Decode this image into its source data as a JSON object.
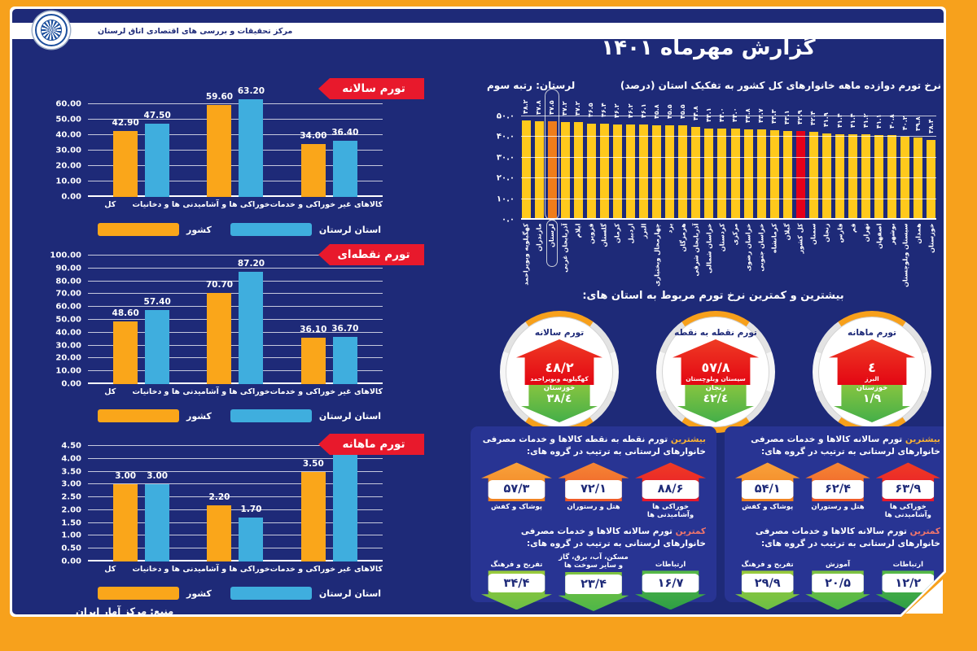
{
  "colors": {
    "orange_frame": "#F7A11C",
    "navy": "#1E2A78",
    "panel_navy": "#283493",
    "bar_orange": "#FAA61A",
    "bar_blue": "#3FAEDE",
    "bar_yellow": "#FFC91C",
    "bar_highlight": "#F07D1A",
    "bar_red": "#E50019",
    "ribbon_red": "#E8192C"
  },
  "banner": {
    "org_name": "مرکز تحقیقات و بررسی های اقتصادی اتاق لرستان"
  },
  "report_title": "گزارش مهرماه ۱۴۰۱",
  "source_note": "منبع: مرکز آمار ایران",
  "legend": {
    "country": "کشور",
    "province": "استان لرستان"
  },
  "chart_data": [
    {
      "type": "bar",
      "title": "تورم سالانه",
      "categories": [
        "کل",
        "خوراکی ها و آشامیدنی ها و دخانیات",
        "کالاهای غیر خوراکی و خدمات"
      ],
      "series": [
        {
          "name": "کشور",
          "color_key": "bar_orange",
          "values": [
            42.9,
            59.6,
            34.0
          ]
        },
        {
          "name": "استان لرستان",
          "color_key": "bar_blue",
          "values": [
            47.5,
            63.2,
            36.4
          ]
        }
      ],
      "ylim": [
        0,
        60
      ],
      "ytick_step": 10,
      "grid": true,
      "legend_position": "bottom"
    },
    {
      "type": "bar",
      "title": "تورم نقطه‌ای",
      "categories": [
        "کل",
        "خوراکی ها و آشامیدنی ها و دخانیات",
        "کالاهای غیر خوراکی و خدمات"
      ],
      "series": [
        {
          "name": "کشور",
          "color_key": "bar_orange",
          "values": [
            48.6,
            70.7,
            36.1
          ]
        },
        {
          "name": "استان لرستان",
          "color_key": "bar_blue",
          "values": [
            57.4,
            87.2,
            36.7
          ]
        }
      ],
      "ylim": [
        0,
        100
      ],
      "ytick_step": 10,
      "grid": true,
      "legend_position": "bottom"
    },
    {
      "type": "bar",
      "title": "تورم ماهانه",
      "categories": [
        "کل",
        "خوراکی ها و آشامیدنی ها و دخانیات",
        "کالاهای غیر خوراکی و خدمات"
      ],
      "series": [
        {
          "name": "کشور",
          "color_key": "bar_orange",
          "values": [
            3.0,
            2.2,
            3.5
          ]
        },
        {
          "name": "استان لرستان",
          "color_key": "bar_blue",
          "values": [
            3.0,
            1.7,
            4.3
          ]
        }
      ],
      "ylim": [
        0,
        4.5
      ],
      "ytick_step": 0.5,
      "grid": true,
      "legend_position": "bottom"
    },
    {
      "type": "bar",
      "title": "نرخ تورم دوازده ماهه خانوارهای کل کشور به تفکیک استان (درصد)",
      "subtitle": "لرستان: رتبه سوم",
      "categories": [
        "کهگیلویه وبویراحمد",
        "مازندران",
        "لرستان",
        "آذربایجان غربی",
        "ایلام",
        "قزوین",
        "گلستان",
        "کرمان",
        "اردبیل",
        "البرز",
        "چهارمحال وبختیاری",
        "یزد",
        "هرمزگان",
        "آذربایجان شرقی",
        "خراسان شمالی",
        "کردستان",
        "مرکزی",
        "خراسان رضوی",
        "خراسان جنوبی",
        "کرمانشاه",
        "گیلان",
        "کل کشور",
        "سمنان",
        "زنجان",
        "فارس",
        "قم",
        "تهران",
        "اصفهان",
        "بوشهر",
        "سیستان وبلوچستان",
        "همدان",
        "خوزستان"
      ],
      "values": [
        48.2,
        47.8,
        47.5,
        47.2,
        47.2,
        46.5,
        46.4,
        46.2,
        46.2,
        46.1,
        45.8,
        45.5,
        45.5,
        44.8,
        44.1,
        44.0,
        44.0,
        43.8,
        43.7,
        43.3,
        43.1,
        42.9,
        42.4,
        41.9,
        41.4,
        41.4,
        41.2,
        41.1,
        40.8,
        40.2,
        39.8,
        38.4
      ],
      "highlight_index": 2,
      "national_index": 21,
      "ylim": [
        0,
        50
      ],
      "ytick_step": 10,
      "grid": true,
      "fa_ticks": true
    }
  ],
  "extremes": {
    "heading": "بیشترین و کمترین نرخ تورم مربوط به استان های:",
    "cards": [
      {
        "title": "تورم سالانه",
        "high_value": "٤٨/٢",
        "high_label": "کهگیلویه وبویراحمد",
        "low_label": "خوزستان",
        "low_value": "٣٨/٤"
      },
      {
        "title": "تورم نقطه به نقطه",
        "high_value": "٥٧/٨",
        "high_label": "سیستان وبلوچستان",
        "low_label": "زنجان",
        "low_value": "٤٢/٤"
      },
      {
        "title": "تورم ماهانه",
        "high_value": "٤",
        "high_label": "البرز",
        "low_label": "خوزستان",
        "low_value": "١/٩"
      }
    ]
  },
  "group_panels": [
    {
      "high_heading_em": "بیشترین",
      "high_heading_rest": " تورم نقطه به نقطه کالاها و خدمات مصرفی خانوارهای لرستانی به ترتیب در گروه های:",
      "high_items": [
        {
          "value": "۸۸/۶",
          "label": "خوراکی ها وآشامیدنی ها",
          "tone": "red"
        },
        {
          "value": "۷۲/۱",
          "label": "هتل و رستوران",
          "tone": "orange2"
        },
        {
          "value": "۵۷/۳",
          "label": "پوشاک و کفش",
          "tone": "orange"
        }
      ],
      "low_heading_em": "کمترین",
      "low_heading_rest": " تورم سالانه کالاها و خدمات مصرفی خانوارهای لرستانی به ترتیب در گروه های:",
      "low_items": [
        {
          "value": "۱۶/۷",
          "label": "ارتباطات",
          "tone": "g3"
        },
        {
          "value": "۲۳/۴",
          "label": "مسکن، آب، برق، گاز و سایر سوخت ها",
          "tone": "g2"
        },
        {
          "value": "۳۴/۴",
          "label": "تفریح و فرهنگ",
          "tone": "g1"
        }
      ]
    },
    {
      "high_heading_em": "بیشترین",
      "high_heading_rest": " تورم سالانه کالاها و خدمات مصرفی خانوارهای لرستانی به ترتیب در گروه های:",
      "high_items": [
        {
          "value": "۶۳/۹",
          "label": "خوراکی ها وآشامیدنی ها",
          "tone": "red"
        },
        {
          "value": "۶۲/۴",
          "label": "هتل و رستوران",
          "tone": "orange2"
        },
        {
          "value": "۵۴/۱",
          "label": "پوشاک و کفش",
          "tone": "orange"
        }
      ],
      "low_heading_em": "کمترین",
      "low_heading_rest": " تورم سالانه کالاها و خدمات مصرفی خانوارهای لرستانی به ترتیب در گروه های:",
      "low_items": [
        {
          "value": "۱۲/۲",
          "label": "ارتباطات",
          "tone": "g3"
        },
        {
          "value": "۲۰/۵",
          "label": "آموزش",
          "tone": "g2"
        },
        {
          "value": "۲۹/۹",
          "label": "تفریح و فرهنگ",
          "tone": "g1"
        }
      ]
    }
  ]
}
